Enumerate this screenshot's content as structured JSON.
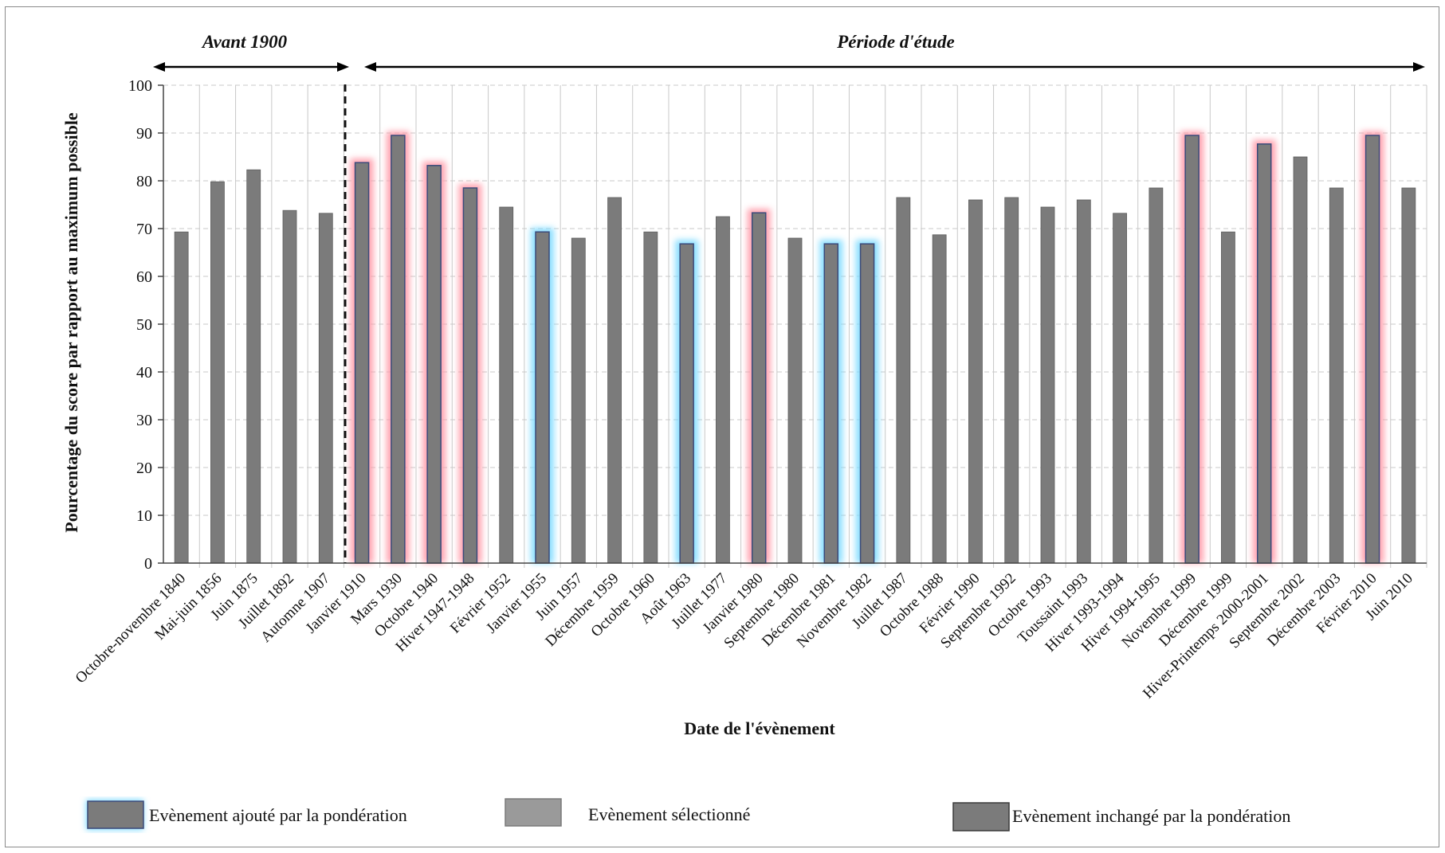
{
  "chart_data": {
    "type": "bar",
    "title": "",
    "xlabel": "Date de l'évènement",
    "ylabel": "Pourcentage du score par rapport au maximum possible",
    "ylim": [
      0,
      100
    ],
    "yticks": [
      0,
      10,
      20,
      30,
      40,
      50,
      60,
      70,
      80,
      90,
      100
    ],
    "grid": true,
    "legend_position": "bottom",
    "periods": [
      {
        "label": "Avant 1900"
      },
      {
        "label": "Période d'étude"
      }
    ],
    "categories": [
      "Octobre-novembre 1840",
      "Mai-juin 1856",
      "Juin 1875",
      "Juillet 1892",
      "Automne 1907",
      "Janvier 1910",
      "Mars 1930",
      "Octobre 1940",
      "Hiver 1947-1948",
      "Février 1952",
      "Janvier 1955",
      "Juin 1957",
      "Décembre 1959",
      "Octobre 1960",
      "Août 1963",
      "Juillet 1977",
      "Janvier 1980",
      "Septembre 1980",
      "Décembre 1981",
      "Novembre 1982",
      "Juillet 1987",
      "Octobre 1988",
      "Février 1990",
      "Septembre 1992",
      "Octobre 1993",
      "Toussaint 1993",
      "Hiver 1993-1994",
      "Hiver 1994-1995",
      "Novembre 1999",
      "Décembre 1999",
      "Hiver-Printemps 2000-2001",
      "Septembre 2002",
      "Décembre 2003",
      "Février 2010",
      "Juin 2010"
    ],
    "values": [
      69.3,
      79.8,
      82.3,
      73.8,
      73.2,
      83.8,
      89.5,
      83.2,
      78.5,
      74.5,
      69.3,
      68,
      76.5,
      69.3,
      66.8,
      72.5,
      73.3,
      68,
      66.8,
      66.8,
      76.5,
      68.7,
      76,
      76.5,
      74.5,
      76,
      73.2,
      78.5,
      89.5,
      69.3,
      87.7,
      85,
      78.5,
      89.5,
      78.5
    ],
    "highlight": [
      "none",
      "none",
      "none",
      "none",
      "none",
      "red",
      "red",
      "red",
      "red",
      "none",
      "blue",
      "none",
      "none",
      "none",
      "blue",
      "none",
      "red",
      "none",
      "blue",
      "blue",
      "none",
      "none",
      "none",
      "none",
      "none",
      "none",
      "none",
      "none",
      "red",
      "none",
      "red",
      "none",
      "none",
      "red",
      "none"
    ],
    "colors": {
      "bar": "#7b7b7b",
      "bar_selected": "#9a9a9a",
      "glow_red": "#ff9aa8",
      "glow_blue": "#7fdcff",
      "grid": "#c8c8c8"
    }
  },
  "legend": [
    {
      "label": "Evènement ajouté par la pondération",
      "style": "blue"
    },
    {
      "label": "Evènement sélectionné",
      "style": "selected"
    },
    {
      "label": "Evènement inchangé par la pondération",
      "style": "plain"
    }
  ]
}
